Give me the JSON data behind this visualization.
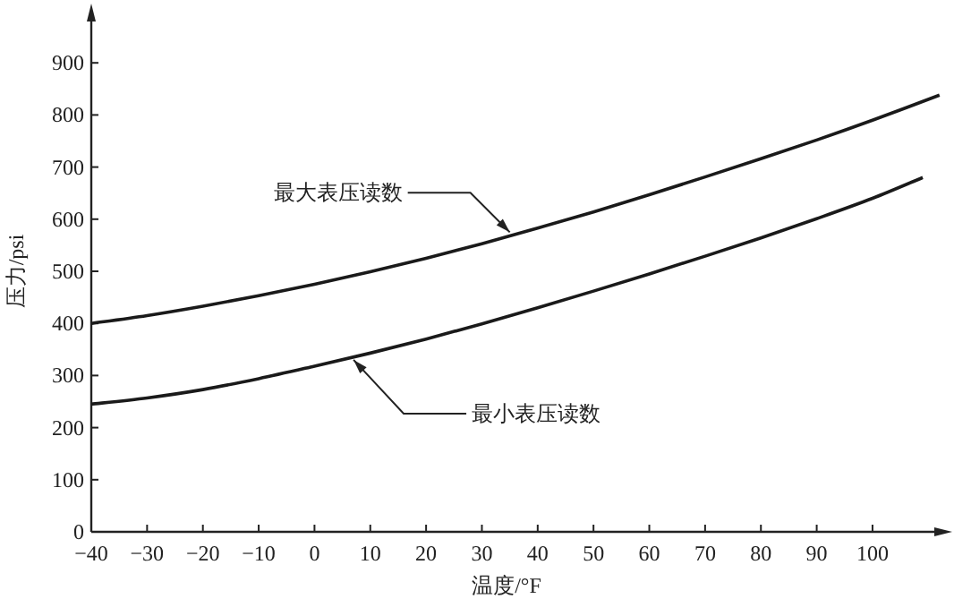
{
  "chart_data": {
    "type": "line",
    "xlabel": "温度/°F",
    "ylabel": "压力/psi",
    "x": [
      -40,
      -30,
      -20,
      -10,
      0,
      10,
      20,
      30,
      40,
      50,
      60,
      70,
      80,
      90,
      100,
      112
    ],
    "series": [
      {
        "color": "#1a1a1a",
        "values": [
          400,
          415,
          433,
          453,
          475,
          499,
          525,
          553,
          583,
          614,
          647,
          681,
          716,
          752,
          790,
          838
        ]
      },
      {
        "color": "#1a1a1a",
        "x": [
          -40,
          -30,
          -20,
          -10,
          0,
          10,
          20,
          30,
          40,
          50,
          60,
          70,
          80,
          90,
          100,
          109
        ],
        "values": [
          245,
          257,
          273,
          294,
          318,
          343,
          370,
          399,
          430,
          462,
          495,
          529,
          564,
          601,
          640,
          680
        ]
      }
    ],
    "xlim": [
      -40,
      113
    ],
    "ylim": [
      0,
      1000
    ],
    "xticks": [
      -40,
      -30,
      -20,
      -10,
      0,
      10,
      20,
      30,
      40,
      50,
      60,
      70,
      80,
      90,
      100
    ],
    "yticks": [
      0,
      100,
      200,
      300,
      400,
      500,
      600,
      700,
      800,
      900
    ],
    "grid": false,
    "marker": "none",
    "line_style": "solid",
    "annotations": [
      {
        "text": "最大表压读数",
        "x": 35,
        "y": 575
      },
      {
        "text": "最小表压读数",
        "x": 7,
        "y": 330
      }
    ]
  }
}
